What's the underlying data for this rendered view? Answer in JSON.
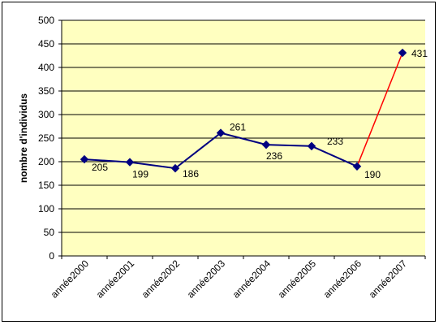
{
  "chart_data": {
    "type": "line",
    "categories": [
      "année2000",
      "année2001",
      "année2002",
      "année2003",
      "année2004",
      "année2005",
      "année2006",
      "année2007"
    ],
    "values": [
      205,
      199,
      186,
      261,
      236,
      233,
      190,
      431
    ],
    "title": "",
    "xlabel": "",
    "ylabel": "nombre d'individus",
    "ylim": [
      0,
      500
    ],
    "yticks": [
      0,
      50,
      100,
      150,
      200,
      250,
      300,
      350,
      400,
      450,
      500
    ],
    "grid": true,
    "legend": "none",
    "colors": {
      "plot_background": "#ffffc0",
      "main_line": "#000080",
      "last_segment": "#ff0000",
      "marker": "#000080",
      "gridline": "#000000"
    }
  }
}
